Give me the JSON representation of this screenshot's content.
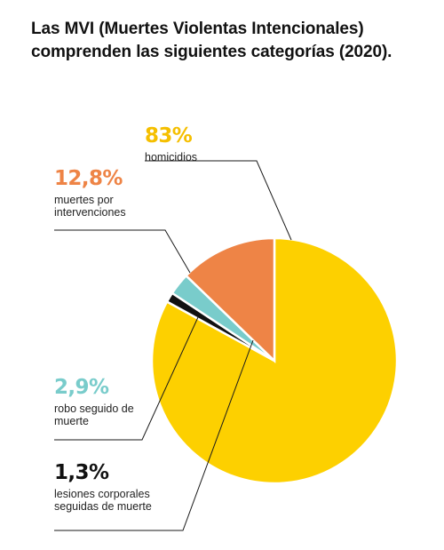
{
  "title": "Las MVI (Muertes Violentas Intencionales) comprenden las siguientes categorías (2020).",
  "chart_data": {
    "type": "pie",
    "title": "Las MVI (Muertes Violentas Intencionales) comprenden las siguientes categorías (2020).",
    "unit": "%",
    "slices": [
      {
        "label": "homicidios",
        "value": 83,
        "percent_label": "83%",
        "description": [
          "homicidios"
        ],
        "color": "#FDD000",
        "label_color": "#F5BF00"
      },
      {
        "label": "lesiones corporales seguidas de muerte",
        "value": 1.3,
        "percent_label": "1,3%",
        "description": [
          "lesiones corporales",
          "seguidas de muerte"
        ],
        "color": "#111111",
        "label_color": "#111111"
      },
      {
        "label": "robo seguido de muerte",
        "value": 2.9,
        "percent_label": "2,9%",
        "description": [
          "robo seguido de",
          "muerte"
        ],
        "color": "#79CCCB",
        "label_color": "#79CCCB"
      },
      {
        "label": "muertes por intervenciones",
        "value": 12.8,
        "percent_label": "12,8%",
        "description": [
          "muertes por",
          "intervenciones"
        ],
        "color": "#EE8446",
        "label_color": "#EE8446"
      }
    ],
    "legend": "labels outside slices with leader lines",
    "grid": false
  }
}
